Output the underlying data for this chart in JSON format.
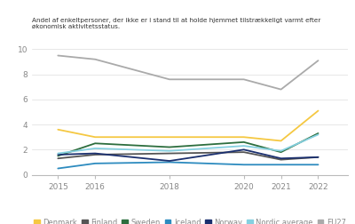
{
  "title": "Andel af enkeltpersoner, der ikke er i stand til at holde hjemmet tilstrækkeligt varmt efter økonomisk aktivitetsstatus.",
  "years": [
    2015,
    2016,
    2018,
    2020,
    2021,
    2022
  ],
  "series": {
    "Denmark": [
      3.6,
      3.0,
      3.0,
      3.0,
      2.7,
      5.1
    ],
    "Finland": [
      1.3,
      1.6,
      1.7,
      1.8,
      1.2,
      1.4
    ],
    "Sweden": [
      1.5,
      2.5,
      2.2,
      2.6,
      1.8,
      3.3
    ],
    "Iceland": [
      0.5,
      0.9,
      1.0,
      0.8,
      0.8,
      0.8
    ],
    "Norway": [
      1.6,
      1.7,
      1.1,
      2.0,
      1.3,
      1.4
    ],
    "Nordic average": [
      1.7,
      2.1,
      1.9,
      2.3,
      1.9,
      3.2
    ],
    "EU27": [
      9.5,
      9.2,
      7.6,
      7.6,
      6.8,
      9.1
    ]
  },
  "colors": {
    "Denmark": "#f5c842",
    "Finland": "#555555",
    "Sweden": "#2d6e3e",
    "Iceland": "#2d8bbf",
    "Norway": "#1a2f6e",
    "Nordic average": "#85d0e0",
    "EU27": "#aaaaaa"
  },
  "ylim": [
    0,
    10
  ],
  "yticks": [
    0,
    2,
    4,
    6,
    8,
    10
  ],
  "background_color": "#ffffff",
  "title_fontsize": 5.2,
  "tick_fontsize": 6.5,
  "legend_fontsize": 6.0
}
